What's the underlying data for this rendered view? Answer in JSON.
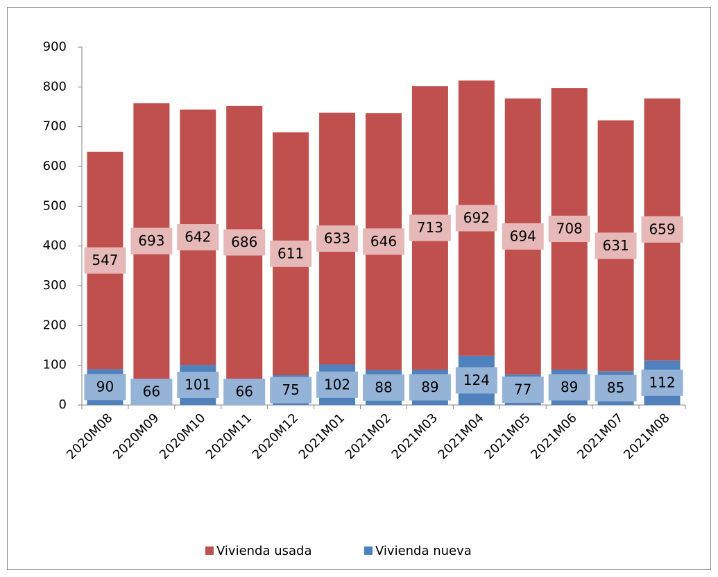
{
  "chart_data": {
    "type": "stacked_bar",
    "categories": [
      "2020M08",
      "2020M09",
      "2020M10",
      "2020M11",
      "2020M12",
      "2021M01",
      "2021M02",
      "2021M03",
      "2021M04",
      "2021M05",
      "2021M06",
      "2021M07",
      "2021M08"
    ],
    "series": [
      {
        "name": "Vivienda usada",
        "color": "#c0504d",
        "label_color": "#e6b9b8",
        "values": [
          547,
          693,
          642,
          686,
          611,
          633,
          646,
          713,
          692,
          694,
          708,
          631,
          659
        ]
      },
      {
        "name": "Vivienda nueva",
        "color": "#4f81bd",
        "label_color": "#95b3d7",
        "values": [
          90,
          66,
          101,
          66,
          75,
          102,
          88,
          89,
          124,
          77,
          89,
          85,
          112
        ]
      }
    ],
    "ylim": [
      0,
      900
    ],
    "yticks": [
      0,
      100,
      200,
      300,
      400,
      500,
      600,
      700,
      800,
      900
    ],
    "grid": false
  }
}
